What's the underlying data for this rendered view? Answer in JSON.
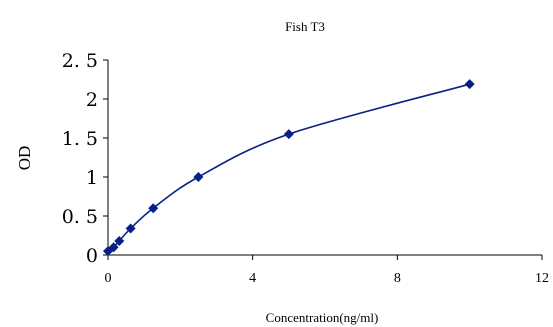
{
  "chart_data": {
    "type": "scatter",
    "title": "Fish T3",
    "xlabel": "Concentration(ng/ml)",
    "ylabel": "OD",
    "xlim": [
      0,
      12
    ],
    "ylim": [
      0,
      2.5
    ],
    "xticks": [
      0,
      4,
      8,
      12
    ],
    "yticks": [
      {
        "value": 0,
        "label": "0"
      },
      {
        "value": 0.5,
        "label": "0. 5"
      },
      {
        "value": 1,
        "label": "1"
      },
      {
        "value": 1.5,
        "label": "1. 5"
      },
      {
        "value": 2,
        "label": "2"
      },
      {
        "value": 2.5,
        "label": "2. 5"
      }
    ],
    "grid": false,
    "trendline": "smooth",
    "series": [
      {
        "x": [
          0,
          0.156,
          0.312,
          0.625,
          1.25,
          2.5,
          5,
          10
        ],
        "y": [
          0.05,
          0.1,
          0.18,
          0.34,
          0.6,
          1.0,
          1.55,
          2.19
        ],
        "color": "#0a1f86",
        "marker": "diamond"
      }
    ]
  }
}
